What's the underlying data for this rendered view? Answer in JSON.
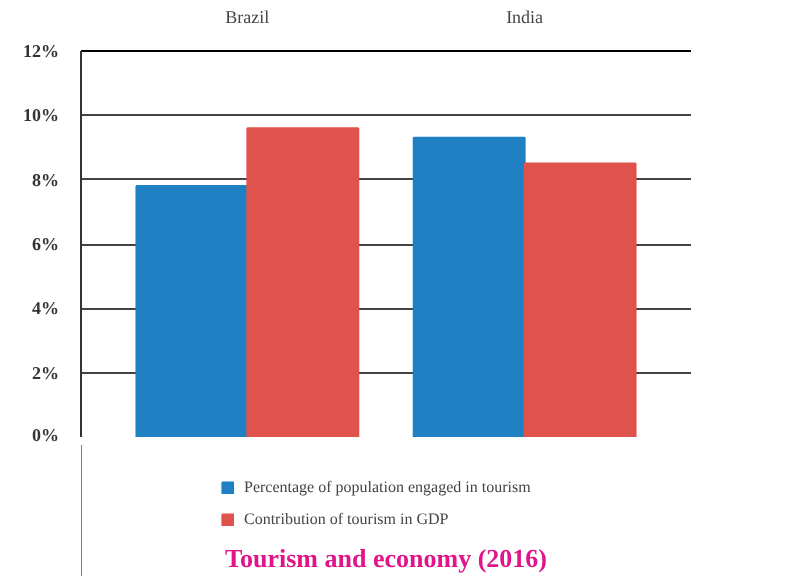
{
  "chart_data": {
    "type": "bar",
    "title": "Tourism and economy (2016)",
    "categories": [
      "Brazil",
      "India"
    ],
    "series": [
      {
        "name": "Percentage of population engaged in tourism",
        "color": "#1f80c4",
        "values": [
          7.8,
          9.3
        ]
      },
      {
        "name": "Contribution of tourism in GDP",
        "color": "#e0524c",
        "values": [
          9.6,
          8.5
        ]
      }
    ],
    "ylim": [
      0,
      12
    ],
    "yticks": [
      {
        "value": 0,
        "label": "0%"
      },
      {
        "value": 2,
        "label": "2%"
      },
      {
        "value": 4,
        "label": "4%"
      },
      {
        "value": 6,
        "label": "6%"
      },
      {
        "value": 8,
        "label": "8%"
      },
      {
        "value": 10,
        "label": "10%"
      },
      {
        "value": 12,
        "label": "12%"
      }
    ],
    "grid": "y",
    "legend": "bottom"
  }
}
